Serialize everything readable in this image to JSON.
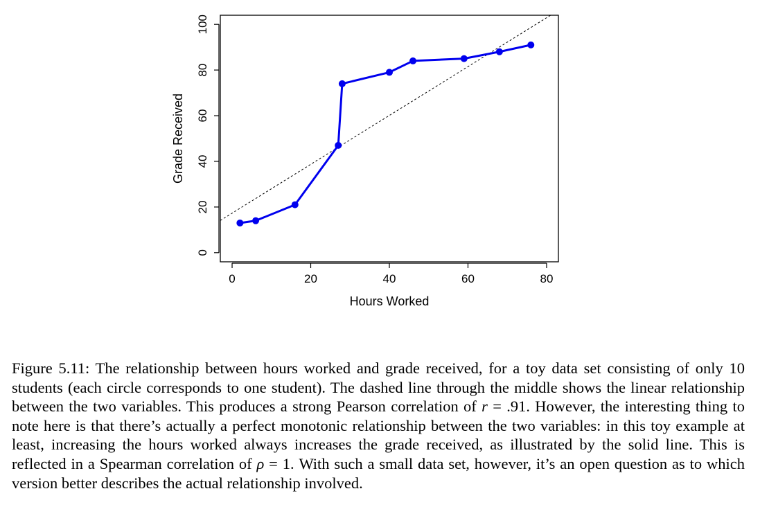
{
  "chart_data": {
    "type": "line",
    "xlabel": "Hours Worked",
    "ylabel": "Grade Received",
    "xlim": [
      -3,
      83
    ],
    "ylim": [
      -4,
      104
    ],
    "x_ticks": [
      0,
      20,
      40,
      60,
      80
    ],
    "y_ticks": [
      0,
      20,
      40,
      60,
      80,
      100
    ],
    "series": [
      {
        "style": "solid line with filled circle markers",
        "color": "#0000ee",
        "x": [
          2,
          6,
          16,
          27,
          28,
          40,
          46,
          59,
          68,
          76
        ],
        "y": [
          13,
          14,
          21,
          47,
          74,
          79,
          84,
          85,
          88,
          91
        ]
      }
    ],
    "reference_line": {
      "style": "dashed",
      "color": "#000000",
      "intercept": 17.3,
      "slope": 1.07
    },
    "grid": false,
    "legend": "none"
  },
  "caption": {
    "label": "Figure 5.11:",
    "text_1": "The relationship between hours worked and grade received, for a toy data set consisting of only 10 students (each circle corresponds to one student). The dashed line through the middle shows the linear relationship between the two variables. This produces a strong Pearson correlation of ",
    "r_symbol": "r",
    "r_value": " = .91.",
    "text_2": " However, the interesting thing to note here is that there’s actually a perfect monotonic relationship between the two variables: in this toy example at least, increasing the hours worked always increases the grade received, as illustrated by the solid line. This is reflected in a Spearman correlation of ",
    "rho_symbol": "ρ",
    "rho_value": " = 1.",
    "text_3": " With such a small data set, however, it’s an open question as to which version better describes the actual relationship involved."
  }
}
